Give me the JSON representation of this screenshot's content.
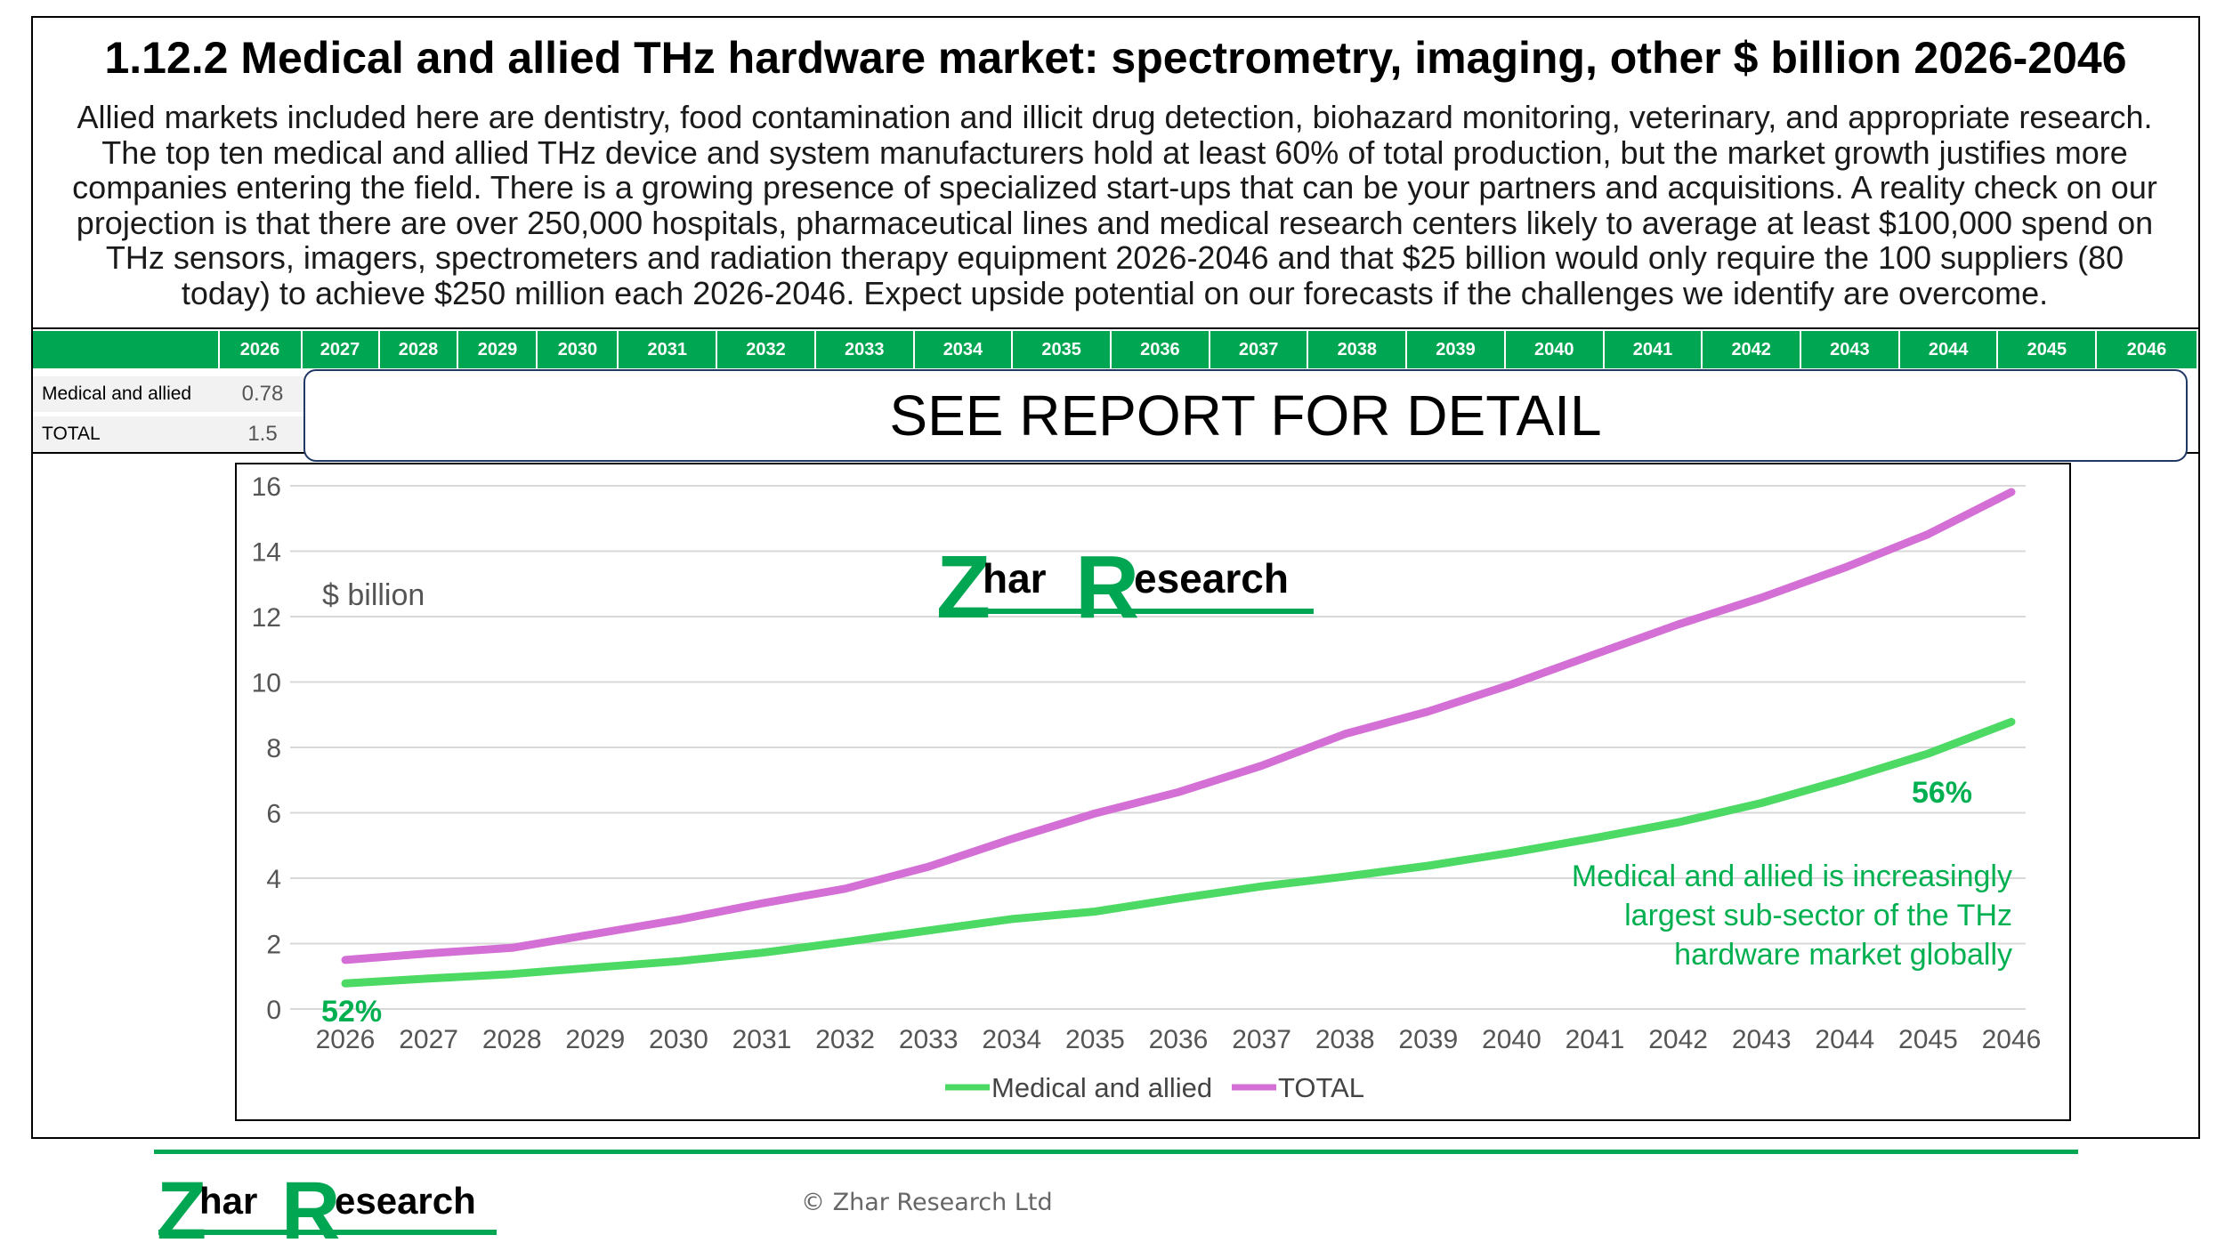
{
  "header": {
    "title": "1.12.2 Medical and allied THz hardware market: spectrometry, imaging, other $ billion 2026-2046",
    "description_lines": [
      "Allied markets included here are dentistry, food contamination and illicit drug detection, biohazard monitoring, veterinary, and appropriate research.",
      "The top ten medical and allied THz device and system manufacturers hold at least 60% of total production, but the market growth justifies more",
      "companies entering the field. There is a growing presence of specialized start-ups that can be your partners and acquisitions. A reality check on our",
      "projection is that there are over 250,000 hospitals, pharmaceutical lines and medical research centers likely to average at least $100,000 spend on",
      "THz sensors, imagers, spectrometers and radiation therapy equipment 2026-2046 and that $25 billion would only require the 100 suppliers (80",
      "today) to achieve $250 million each 2026-2046. Expect upside potential on our forecasts if the challenges we identify are overcome."
    ]
  },
  "table": {
    "years": [
      "2026",
      "2027",
      "2028",
      "2029",
      "2030",
      "2031",
      "2032",
      "2033",
      "2034",
      "2035",
      "2036",
      "2037",
      "2038",
      "2039",
      "2040",
      "2041",
      "2042",
      "2043",
      "2044",
      "2045",
      "2046"
    ],
    "rows": [
      {
        "label": "Medical and allied",
        "value": "0.78"
      },
      {
        "label": "TOTAL",
        "value": "1.5"
      }
    ]
  },
  "overlay_text": "SEE REPORT FOR DETAIL",
  "logo": {
    "part1": "Z",
    "part2": "har",
    "part3": "R",
    "part4": "esearch"
  },
  "copyright": "© Zhar Research Ltd",
  "colors": {
    "green": "#00a651",
    "medical_line": "#4cd964",
    "total_line": "#d46fd6",
    "annotation": "#00b050"
  },
  "chart_data": {
    "type": "line",
    "ylabel": "$ billion",
    "ylim": [
      0,
      16
    ],
    "yticks": [
      0,
      2,
      4,
      6,
      8,
      10,
      12,
      14,
      16
    ],
    "categories": [
      "2026",
      "2027",
      "2028",
      "2029",
      "2030",
      "2031",
      "2032",
      "2033",
      "2034",
      "2035",
      "2036",
      "2037",
      "2038",
      "2039",
      "2040",
      "2041",
      "2042",
      "2043",
      "2044",
      "2045",
      "2046"
    ],
    "series": [
      {
        "name": "Medical and allied",
        "values": [
          0.78,
          0.93,
          1.07,
          1.27,
          1.46,
          1.72,
          2.05,
          2.4,
          2.75,
          2.98,
          3.38,
          3.75,
          4.05,
          4.38,
          4.78,
          5.23,
          5.71,
          6.3,
          7.02,
          7.81,
          8.78
        ]
      },
      {
        "name": "TOTAL",
        "values": [
          1.5,
          1.7,
          1.87,
          2.3,
          2.73,
          3.23,
          3.68,
          4.35,
          5.2,
          5.98,
          6.63,
          7.44,
          8.41,
          9.1,
          9.93,
          10.85,
          11.76,
          12.58,
          13.5,
          14.52,
          15.81
        ]
      }
    ],
    "grid": true,
    "legend": "bottom",
    "annotations": {
      "start_pct": "52%",
      "end_pct": "56%",
      "note_lines": [
        "Medical and allied is increasingly",
        "largest sub-sector of the THz",
        "hardware market globally"
      ]
    }
  }
}
